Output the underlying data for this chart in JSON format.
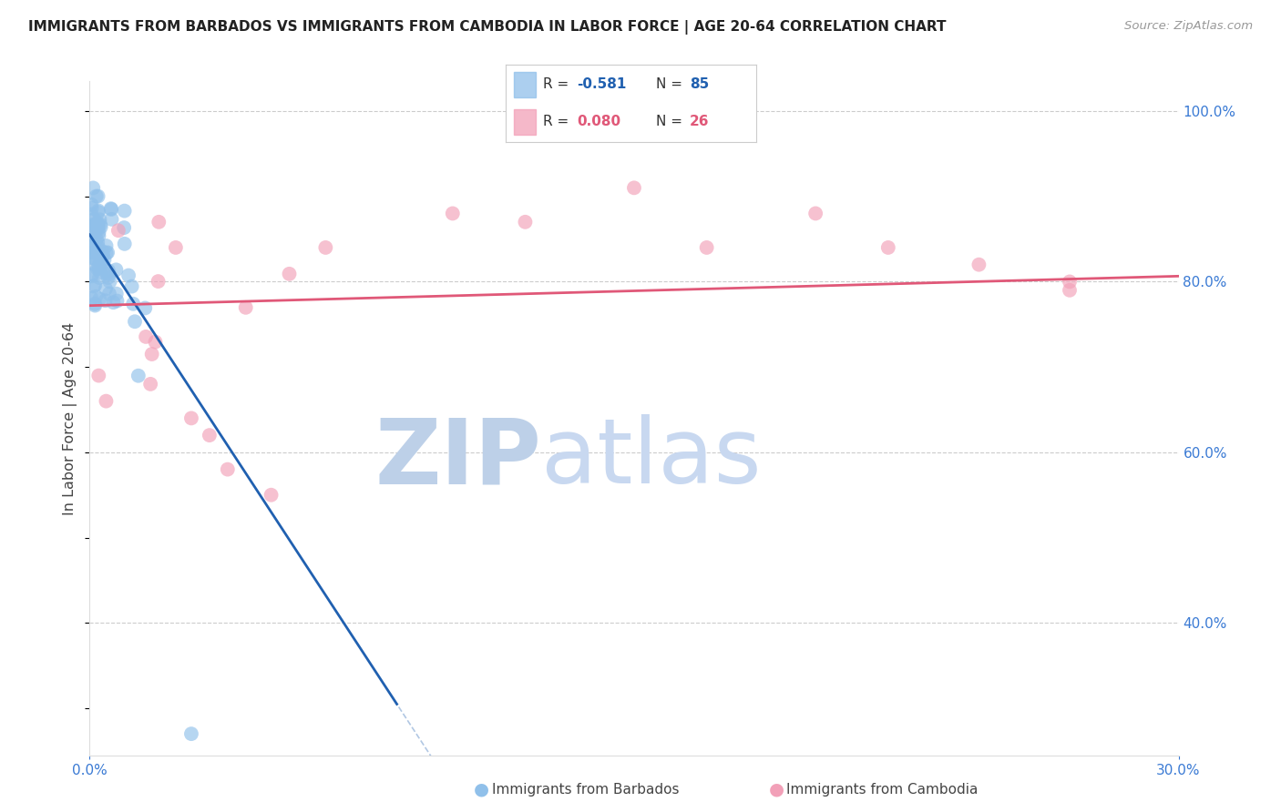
{
  "title": "IMMIGRANTS FROM BARBADOS VS IMMIGRANTS FROM CAMBODIA IN LABOR FORCE | AGE 20-64 CORRELATION CHART",
  "source": "Source: ZipAtlas.com",
  "ylabel": "In Labor Force | Age 20-64",
  "xlim": [
    0.0,
    0.3
  ],
  "ylim": [
    0.245,
    1.035
  ],
  "xtick_positions": [
    0.0,
    0.3
  ],
  "xtick_labels": [
    "0.0%",
    "30.0%"
  ],
  "yticks_right": [
    0.4,
    0.6,
    0.8,
    1.0
  ],
  "ytick_labels_right": [
    "40.0%",
    "60.0%",
    "80.0%",
    "100.0%"
  ],
  "barbados_color": "#90C0EA",
  "cambodia_color": "#F2A0B8",
  "barbados_line_color": "#2060B0",
  "cambodia_line_color": "#E05878",
  "barbados_R": -0.581,
  "barbados_N": 85,
  "cambodia_R": 0.08,
  "cambodia_N": 26,
  "watermark_zip": "ZIP",
  "watermark_atlas": "atlas",
  "watermark_color_zip": "#BDD0E8",
  "watermark_color_atlas": "#C8D8F0",
  "grid_color": "#CCCCCC",
  "axis_label_color": "#3A7AD4",
  "title_color": "#222222",
  "source_color": "#999999",
  "legend_border_color": "#CCCCCC",
  "scatter_size": 130,
  "scatter_alpha": 0.65,
  "line_width": 2.0,
  "barbados_line_y0": 0.855,
  "barbados_line_slope": -6.5,
  "cambodia_line_y0": 0.772,
  "cambodia_line_slope": 0.115
}
